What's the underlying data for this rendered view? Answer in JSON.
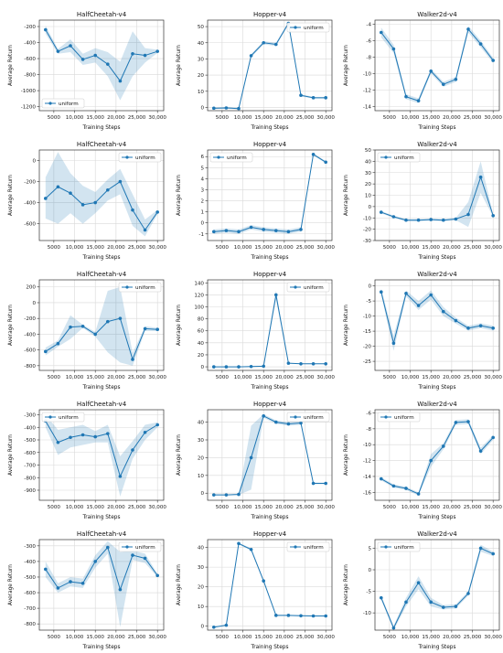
{
  "accent_color": "#1f77b4",
  "x_ticks": [
    5000,
    10000,
    15000,
    20000,
    25000,
    30000
  ],
  "x_tick_labels": [
    "5000",
    "10,000",
    "15,000",
    "20,000",
    "25,000",
    "30,000"
  ],
  "x": [
    3000,
    6000,
    9000,
    12000,
    15000,
    18000,
    21000,
    24000,
    27000,
    30000
  ],
  "chart_data": [
    {
      "type": "line",
      "title": "HalfCheetah-v4",
      "xlabel": "Training Steps",
      "ylabel": "Average Return",
      "legend": "lower-left",
      "ylim": [
        -1250,
        -120
      ],
      "yticks": [
        -1200,
        -1000,
        -800,
        -600,
        -400,
        -200
      ],
      "series": [
        {
          "name": "uniform",
          "x": [
            3000,
            6000,
            9000,
            12000,
            15000,
            18000,
            21000,
            24000,
            27000,
            30000
          ],
          "y": [
            -240,
            -510,
            -440,
            -610,
            -560,
            -670,
            -880,
            -540,
            -560,
            -510
          ],
          "lower": [
            -290,
            -540,
            -520,
            -680,
            -650,
            -820,
            -1120,
            -820,
            -650,
            -530
          ],
          "upper": [
            -190,
            -480,
            -360,
            -540,
            -470,
            -520,
            -640,
            -260,
            -470,
            -490
          ]
        }
      ]
    },
    {
      "type": "line",
      "title": "Hopper-v4",
      "xlabel": "Training Steps",
      "ylabel": "Average Return",
      "legend": "top-right",
      "ylim": [
        -2,
        54
      ],
      "yticks": [
        0,
        10,
        20,
        30,
        40,
        50
      ],
      "series": [
        {
          "name": "uniform",
          "x": [
            3000,
            6000,
            9000,
            12000,
            15000,
            18000,
            21000,
            24000,
            27000,
            30000
          ],
          "y": [
            -0.5,
            -0.3,
            -0.7,
            32,
            40,
            39,
            52,
            7.5,
            6,
            6
          ],
          "lower": [
            -1,
            -0.8,
            -1.2,
            31,
            39,
            38,
            51,
            6.8,
            5.5,
            5.5
          ],
          "upper": [
            0,
            0.2,
            -0.2,
            33,
            41,
            40,
            53,
            8.2,
            6.5,
            6.5
          ]
        }
      ]
    },
    {
      "type": "line",
      "title": "Walker2d-v4",
      "xlabel": "Training Steps",
      "ylabel": "Average Return",
      "legend": "none",
      "ylim": [
        -14.5,
        -3.5
      ],
      "yticks": [
        -14,
        -12,
        -10,
        -8,
        -6,
        -4
      ],
      "series": [
        {
          "name": "",
          "x": [
            3000,
            6000,
            9000,
            12000,
            15000,
            18000,
            21000,
            24000,
            27000,
            30000
          ],
          "y": [
            -5,
            -7,
            -12.8,
            -13.3,
            -9.7,
            -11.3,
            -10.7,
            -4.6,
            -6.4,
            -8.4
          ],
          "lower": [
            -5.6,
            -7.5,
            -13.1,
            -13.6,
            -10,
            -11.6,
            -11,
            -5,
            -6.8,
            -8.7
          ],
          "upper": [
            -4.4,
            -6.5,
            -12.5,
            -13,
            -9.4,
            -11,
            -10.4,
            -4.2,
            -6,
            -8.1
          ]
        }
      ]
    },
    {
      "type": "line",
      "title": "HalfCheetah-v4",
      "xlabel": "Training Steps",
      "ylabel": "Average Return",
      "legend": "top-right",
      "ylim": [
        -760,
        100
      ],
      "yticks": [
        -600,
        -400,
        -200,
        0
      ],
      "series": [
        {
          "name": "uniform",
          "x": [
            3000,
            6000,
            9000,
            12000,
            15000,
            18000,
            21000,
            24000,
            27000,
            30000
          ],
          "y": [
            -360,
            -250,
            -310,
            -420,
            -400,
            -280,
            -200,
            -470,
            -660,
            -490
          ],
          "lower": [
            -550,
            -600,
            -500,
            -600,
            -500,
            -380,
            -320,
            -620,
            -720,
            -510
          ],
          "upper": [
            -160,
            80,
            -120,
            -240,
            -300,
            -180,
            -80,
            -320,
            -560,
            -470
          ]
        }
      ]
    },
    {
      "type": "line",
      "title": "Hopper-v4",
      "xlabel": "Training Steps",
      "ylabel": "Average Return",
      "legend": "top-left",
      "ylim": [
        -1.6,
        6.6
      ],
      "yticks": [
        -1,
        0,
        1,
        2,
        3,
        4,
        5,
        6
      ],
      "series": [
        {
          "name": "uniform",
          "x": [
            3000,
            6000,
            9000,
            12000,
            15000,
            18000,
            21000,
            24000,
            27000,
            30000
          ],
          "y": [
            -0.8,
            -0.7,
            -0.8,
            -0.4,
            -0.6,
            -0.7,
            -0.8,
            -0.6,
            6.2,
            5.5
          ],
          "lower": [
            -1,
            -0.9,
            -1,
            -0.6,
            -0.8,
            -0.9,
            -1,
            -0.8,
            6.1,
            5.4
          ],
          "upper": [
            -0.6,
            -0.5,
            -0.6,
            -0.2,
            -0.4,
            -0.5,
            -0.6,
            -0.4,
            6.3,
            5.6
          ]
        }
      ]
    },
    {
      "type": "line",
      "title": "Walker2d-v4",
      "xlabel": "Training Steps",
      "ylabel": "Average Return",
      "legend": "top-left",
      "ylim": [
        -30,
        50
      ],
      "yticks": [
        -30,
        -20,
        -10,
        0,
        10,
        20,
        30,
        40,
        50
      ],
      "series": [
        {
          "name": "uniform",
          "x": [
            3000,
            6000,
            9000,
            12000,
            15000,
            18000,
            21000,
            24000,
            27000,
            30000
          ],
          "y": [
            -5,
            -9,
            -12,
            -12,
            -11.5,
            -12,
            -11,
            -7,
            26,
            -8
          ],
          "lower": [
            -6,
            -10,
            -13,
            -13,
            -12.5,
            -13,
            -12,
            -18,
            12,
            -9
          ],
          "upper": [
            -4,
            -8,
            -11,
            -11,
            -10.5,
            -11,
            -10,
            4,
            40,
            -7
          ]
        }
      ]
    },
    {
      "type": "line",
      "title": "HalfCheetah-v4",
      "xlabel": "Training Steps",
      "ylabel": "Average Return",
      "legend": "top-right",
      "ylim": [
        -860,
        290
      ],
      "yticks": [
        -800,
        -600,
        -400,
        -200,
        0,
        200
      ],
      "series": [
        {
          "name": "uniform",
          "x": [
            3000,
            6000,
            9000,
            12000,
            15000,
            18000,
            21000,
            24000,
            27000,
            30000
          ],
          "y": [
            -620,
            -520,
            -310,
            -300,
            -400,
            -240,
            -200,
            -720,
            -330,
            -340
          ],
          "lower": [
            -670,
            -560,
            -460,
            -320,
            -430,
            -630,
            -760,
            -800,
            -360,
            -360
          ],
          "upper": [
            -570,
            -480,
            -160,
            -280,
            -370,
            150,
            200,
            -640,
            -300,
            -320
          ]
        }
      ]
    },
    {
      "type": "line",
      "title": "Hopper-v4",
      "xlabel": "Training Steps",
      "ylabel": "Average Return",
      "legend": "top-right",
      "ylim": [
        -6,
        145
      ],
      "yticks": [
        0,
        20,
        40,
        60,
        80,
        100,
        120,
        140
      ],
      "series": [
        {
          "name": "uniform",
          "x": [
            3000,
            6000,
            9000,
            12000,
            15000,
            18000,
            21000,
            24000,
            27000,
            30000
          ],
          "y": [
            0,
            0,
            0,
            0.5,
            1,
            120,
            6,
            5,
            5,
            5
          ],
          "lower": [
            -0.5,
            -0.5,
            -0.5,
            0,
            0.5,
            112,
            5.5,
            4.5,
            4.5,
            4.5
          ],
          "upper": [
            0.5,
            0.5,
            0.5,
            1,
            1.5,
            127,
            6.5,
            5.5,
            5.5,
            5.5
          ]
        }
      ]
    },
    {
      "type": "line",
      "title": "Walker2d-v4",
      "xlabel": "Training Steps",
      "ylabel": "Average Return",
      "legend": "none",
      "ylim": [
        -28,
        2
      ],
      "yticks": [
        -25,
        -20,
        -15,
        -10,
        -5,
        0
      ],
      "series": [
        {
          "name": "",
          "x": [
            3000,
            6000,
            9000,
            12000,
            15000,
            18000,
            21000,
            24000,
            27000,
            30000
          ],
          "y": [
            -2,
            -19,
            -2.5,
            -6.5,
            -3,
            -8.5,
            -11.5,
            -14,
            -13.2,
            -14
          ],
          "lower": [
            -3,
            -21.5,
            -3.5,
            -8,
            -4.5,
            -10,
            -12.5,
            -14.8,
            -14,
            -14.8
          ],
          "upper": [
            -1,
            -16.5,
            -1.5,
            -5,
            -1.5,
            -7,
            -10.5,
            -13.2,
            -12.4,
            -13.2
          ]
        }
      ]
    },
    {
      "type": "line",
      "title": "HalfCheetah-v4",
      "xlabel": "Training Steps",
      "ylabel": "Average Return",
      "legend": "top-left",
      "ylim": [
        -980,
        -260
      ],
      "yticks": [
        -900,
        -800,
        -700,
        -600,
        -500,
        -400,
        -300
      ],
      "series": [
        {
          "name": "uniform",
          "x": [
            3000,
            6000,
            9000,
            12000,
            15000,
            18000,
            21000,
            24000,
            27000,
            30000
          ],
          "y": [
            -350,
            -520,
            -480,
            -460,
            -475,
            -450,
            -790,
            -580,
            -440,
            -380
          ],
          "lower": [
            -400,
            -620,
            -560,
            -540,
            -520,
            -520,
            -950,
            -650,
            -500,
            -400
          ],
          "upper": [
            -300,
            -420,
            -400,
            -380,
            -430,
            -380,
            -630,
            -510,
            -380,
            -360
          ]
        }
      ]
    },
    {
      "type": "line",
      "title": "Hopper-v4",
      "xlabel": "Training Steps",
      "ylabel": "Average Return",
      "legend": "top-right",
      "ylim": [
        -4,
        47
      ],
      "yticks": [
        0,
        10,
        20,
        30,
        40
      ],
      "series": [
        {
          "name": "uniform",
          "x": [
            3000,
            6000,
            9000,
            12000,
            15000,
            18000,
            21000,
            24000,
            27000,
            30000
          ],
          "y": [
            -1,
            -1,
            -0.7,
            20,
            43.5,
            40,
            39,
            39.5,
            5.5,
            5.5
          ],
          "lower": [
            -1.3,
            -1.3,
            -1,
            2,
            42.5,
            39,
            38,
            38.5,
            5,
            5
          ],
          "upper": [
            -0.7,
            -0.7,
            -0.4,
            38,
            44.5,
            41,
            40,
            40.5,
            6,
            6
          ]
        }
      ]
    },
    {
      "type": "line",
      "title": "Walker2d-v4",
      "xlabel": "Training Steps",
      "ylabel": "Average Return",
      "legend": "top-left",
      "ylim": [
        -17,
        -5.6
      ],
      "yticks": [
        -16,
        -14,
        -12,
        -10,
        -8,
        -6
      ],
      "series": [
        {
          "name": "uniform",
          "x": [
            3000,
            6000,
            9000,
            12000,
            15000,
            18000,
            21000,
            24000,
            27000,
            30000
          ],
          "y": [
            -14.3,
            -15.2,
            -15.5,
            -16.2,
            -12,
            -10.2,
            -7.2,
            -7.1,
            -10.8,
            -9.1
          ],
          "lower": [
            -14.5,
            -15.4,
            -15.7,
            -16.4,
            -12.8,
            -10.6,
            -7.5,
            -7.4,
            -11.2,
            -9.4
          ],
          "upper": [
            -14.1,
            -15,
            -15.3,
            -16,
            -11.2,
            -9.8,
            -6.9,
            -6.8,
            -10.4,
            -8.8
          ]
        }
      ]
    },
    {
      "type": "line",
      "title": "HalfCheetah-v4",
      "xlabel": "Training Steps",
      "ylabel": "Average Return",
      "legend": "top-right",
      "ylim": [
        -840,
        -260
      ],
      "yticks": [
        -800,
        -700,
        -600,
        -500,
        -400,
        -300
      ],
      "series": [
        {
          "name": "uniform",
          "x": [
            3000,
            6000,
            9000,
            12000,
            15000,
            18000,
            21000,
            24000,
            27000,
            30000
          ],
          "y": [
            -450,
            -570,
            -530,
            -540,
            -400,
            -310,
            -580,
            -360,
            -380,
            -490
          ],
          "lower": [
            -500,
            -600,
            -560,
            -570,
            -440,
            -350,
            -820,
            -390,
            -410,
            -500
          ],
          "upper": [
            -400,
            -540,
            -500,
            -510,
            -360,
            -270,
            -340,
            -330,
            -350,
            -480
          ]
        }
      ]
    },
    {
      "type": "line",
      "title": "Hopper-v4",
      "xlabel": "Training Steps",
      "ylabel": "Average Return",
      "legend": "top-right",
      "ylim": [
        -2,
        44
      ],
      "yticks": [
        0,
        10,
        20,
        30,
        40
      ],
      "series": [
        {
          "name": "uniform",
          "x": [
            3000,
            6000,
            9000,
            12000,
            15000,
            18000,
            21000,
            24000,
            27000,
            30000
          ],
          "y": [
            -0.5,
            0.5,
            42,
            39,
            23,
            5.5,
            5.5,
            5.3,
            5.2,
            5.2
          ],
          "lower": [
            -0.8,
            0.2,
            41.5,
            38.5,
            22.5,
            5.2,
            5.2,
            5,
            4.9,
            4.9
          ],
          "upper": [
            -0.2,
            0.8,
            42.5,
            39.5,
            23.5,
            5.8,
            5.8,
            5.6,
            5.5,
            5.5
          ]
        }
      ]
    },
    {
      "type": "line",
      "title": "Walker2d-v4",
      "xlabel": "Training Steps",
      "ylabel": "Average Return",
      "legend": "top-left",
      "ylim": [
        -14,
        7
      ],
      "yticks": [
        -10,
        -5,
        0,
        5
      ],
      "series": [
        {
          "name": "uniform",
          "x": [
            3000,
            6000,
            9000,
            12000,
            15000,
            18000,
            21000,
            24000,
            27000,
            30000
          ],
          "y": [
            -6.5,
            -13.5,
            -7.5,
            -3,
            -7.5,
            -8.7,
            -8.5,
            -5.5,
            5,
            3.7
          ],
          "lower": [
            -7,
            -14,
            -8.5,
            -4.5,
            -8.5,
            -9.2,
            -9,
            -6,
            4.2,
            3.2
          ],
          "upper": [
            -6,
            -13,
            -6.5,
            -1.5,
            -6.5,
            -8.2,
            -8,
            -5,
            5.8,
            4.2
          ]
        }
      ]
    }
  ]
}
